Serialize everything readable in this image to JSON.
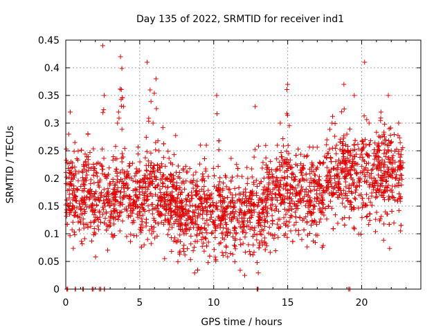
{
  "chart_data": {
    "type": "scatter",
    "title": "Day 135 of 2022, SRMTID for receiver ind1",
    "xlabel": "GPS time / hours",
    "ylabel": "SRMTID / TECUs",
    "xlim": [
      0,
      24
    ],
    "ylim": [
      0,
      0.45
    ],
    "x_ticks": [
      0,
      5,
      10,
      15,
      20
    ],
    "x_tick_labels": [
      "0",
      "5",
      "10",
      "15",
      "20"
    ],
    "y_ticks": [
      0,
      0.05,
      0.1,
      0.15,
      0.2,
      0.25,
      0.3,
      0.35,
      0.4,
      0.45
    ],
    "y_tick_labels": [
      "0",
      "0.05",
      "0.1",
      "0.15",
      "0.2",
      "0.25",
      "0.3",
      "0.35",
      "0.4",
      "0.45"
    ],
    "grid": true,
    "marker": "plus",
    "color": "#e00000",
    "x_range_of_data": [
      0,
      22.8
    ],
    "baseline_zero_markers_x": [
      0.1,
      0.7,
      1.2,
      1.8,
      2.3,
      2.6,
      13.0,
      19.2
    ],
    "series": [
      {
        "name": "SRMTID",
        "sampled_envelope_note": "dense scatter; representative sampled points",
        "x": [
          0.1,
          0.2,
          0.3,
          0.4,
          0.5,
          0.8,
          1.0,
          1.3,
          1.5,
          1.8,
          2.0,
          2.3,
          2.5,
          2.6,
          2.8,
          3.0,
          3.3,
          3.5,
          3.7,
          3.9,
          4.0,
          4.3,
          4.5,
          4.8,
          5.0,
          5.3,
          5.5,
          5.7,
          5.9,
          6.1,
          6.3,
          6.5,
          6.8,
          7.0,
          7.3,
          7.5,
          7.8,
          8.0,
          8.3,
          8.5,
          8.8,
          9.0,
          9.3,
          9.5,
          9.8,
          10.0,
          10.2,
          10.5,
          10.8,
          11.0,
          11.3,
          11.5,
          11.8,
          12.0,
          12.3,
          12.5,
          12.8,
          13.0,
          13.3,
          13.5,
          13.8,
          14.0,
          14.3,
          14.5,
          14.8,
          15.0,
          15.3,
          15.5,
          15.8,
          16.0,
          16.3,
          16.5,
          16.8,
          17.0,
          17.3,
          17.5,
          17.8,
          18.0,
          18.3,
          18.5,
          18.8,
          19.0,
          19.3,
          19.5,
          19.8,
          20.0,
          20.2,
          20.5,
          20.8,
          21.0,
          21.3,
          21.5,
          21.8,
          22.0,
          22.3,
          22.5,
          22.7
        ],
        "y": [
          0.19,
          0.28,
          0.32,
          0.2,
          0.15,
          0.18,
          0.12,
          0.16,
          0.28,
          0.14,
          0.1,
          0.13,
          0.44,
          0.35,
          0.16,
          0.12,
          0.18,
          0.3,
          0.42,
          0.33,
          0.2,
          0.15,
          0.12,
          0.18,
          0.14,
          0.16,
          0.41,
          0.36,
          0.3,
          0.38,
          0.25,
          0.2,
          0.15,
          0.12,
          0.2,
          0.18,
          0.12,
          0.1,
          0.14,
          0.12,
          0.15,
          0.11,
          0.2,
          0.26,
          0.14,
          0.12,
          0.35,
          0.15,
          0.12,
          0.18,
          0.14,
          0.1,
          0.16,
          0.12,
          0.2,
          0.15,
          0.33,
          0.12,
          0.08,
          0.15,
          0.2,
          0.18,
          0.26,
          0.3,
          0.2,
          0.37,
          0.22,
          0.15,
          0.17,
          0.2,
          0.12,
          0.15,
          0.18,
          0.22,
          0.14,
          0.24,
          0.2,
          0.3,
          0.26,
          0.2,
          0.37,
          0.28,
          0.22,
          0.35,
          0.2,
          0.25,
          0.41,
          0.3,
          0.18,
          0.22,
          0.32,
          0.28,
          0.35,
          0.25,
          0.2,
          0.3,
          0.22
        ]
      }
    ]
  }
}
